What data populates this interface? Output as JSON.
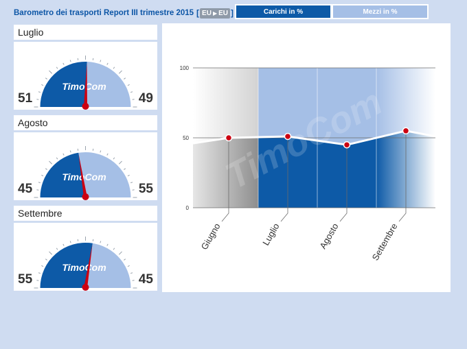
{
  "header": {
    "title": "Barometro dei trasporti Report III trimestre 2015",
    "route_from": "EU",
    "route_to": "EU",
    "tabs": [
      {
        "label": "Carichi in %",
        "active": true
      },
      {
        "label": "Mezzi in %",
        "active": false
      }
    ]
  },
  "brand": "TimoCom",
  "gauges": [
    {
      "month": "Luglio",
      "left_value": "51",
      "right_value": "49"
    },
    {
      "month": "Agosto",
      "left_value": "45",
      "right_value": "55"
    },
    {
      "month": "Settembre",
      "left_value": "55",
      "right_value": "45"
    }
  ],
  "colors": {
    "carichi": "#0d5aa7",
    "mezzi": "#a5bfe6",
    "needle": "#cc0011",
    "page_bg": "#cfdcf1"
  },
  "chart_data": {
    "type": "area",
    "categories": [
      "Giugno",
      "Luglio",
      "Agosto",
      "Settembre"
    ],
    "series": [
      {
        "values": [
          50,
          51,
          45,
          55
        ]
      }
    ],
    "ylim": [
      0,
      100
    ],
    "yticks": [
      "0",
      "50",
      "100"
    ],
    "grid": true,
    "watermark": "TimoCom"
  }
}
